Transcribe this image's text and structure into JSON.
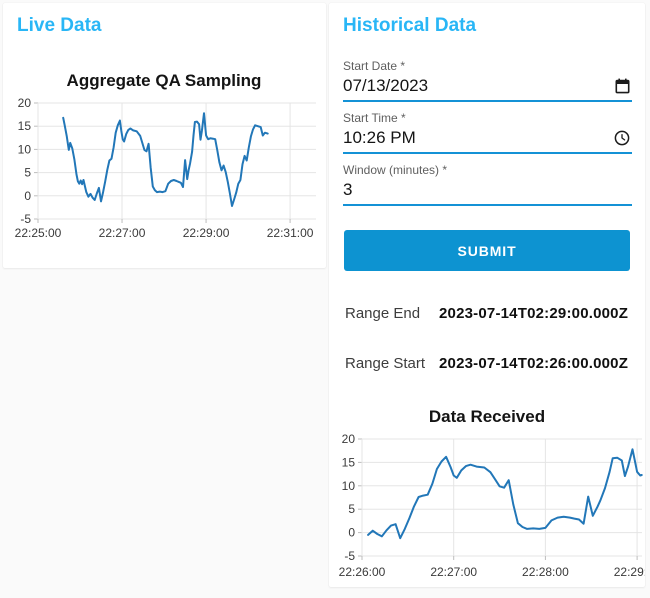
{
  "page": {
    "background": "#fafafa"
  },
  "colors": {
    "heading_cyan": "#29b6f6",
    "accent_blue": "#0d93d1",
    "underline_blue": "#1492d6",
    "line_blue": "#2277b8",
    "grid_gray": "#e5e5e5"
  },
  "live_panel": {
    "heading": "Live Data"
  },
  "historical_panel": {
    "heading": "Historical Data",
    "start_date": {
      "label": "Start Date *",
      "value": "07/13/2023",
      "icon": "calendar-icon"
    },
    "start_time": {
      "label": "Start Time *",
      "value": "10:26 PM",
      "icon": "clock-icon"
    },
    "window": {
      "label": "Window (minutes) *",
      "value": "3"
    },
    "submit_label": "SUBMIT",
    "range_end": {
      "label": "Range End",
      "value": "2023-07-14T02:29:00.000Z"
    },
    "range_start": {
      "label": "Range Start",
      "value": "2023-07-14T02:26:00.000Z"
    }
  },
  "chart_data": [
    {
      "type": "line",
      "title": "Aggregate QA Sampling",
      "xlabel": "",
      "ylabel": "",
      "x_axis_unit": "seconds after 22:25:00",
      "x_min": 0,
      "x_max": 397,
      "y_min": -5,
      "y_max": 20,
      "grid": true,
      "line_color": "#2277b8",
      "grid_color": "#e5e5e5",
      "y_ticks": [
        -5,
        0,
        5,
        10,
        15,
        20
      ],
      "x_ticks": [
        {
          "v": 0,
          "label": "22:25:00"
        },
        {
          "v": 120,
          "label": "22:27:00"
        },
        {
          "v": 240,
          "label": "22:29:00"
        },
        {
          "v": 360,
          "label": "22:31:00"
        }
      ],
      "points": [
        [
          36,
          16.8
        ],
        [
          38,
          15.3
        ],
        [
          41,
          12.9
        ],
        [
          44,
          9.9
        ],
        [
          46,
          11.4
        ],
        [
          49,
          10.2
        ],
        [
          52,
          7.8
        ],
        [
          55,
          4.6
        ],
        [
          57,
          3.1
        ],
        [
          59,
          2.6
        ],
        [
          61,
          3.3
        ],
        [
          63,
          2.5
        ],
        [
          65,
          3.4
        ],
        [
          67,
          2.1
        ],
        [
          69,
          0.8
        ],
        [
          72,
          -0.2
        ],
        [
          75,
          0.4
        ],
        [
          78,
          -0.4
        ],
        [
          81,
          -0.9
        ],
        [
          84,
          0.5
        ],
        [
          87,
          1.7
        ],
        [
          90,
          -1.2
        ],
        [
          93,
          0.8
        ],
        [
          96,
          3.1
        ],
        [
          99,
          5.6
        ],
        [
          102,
          7.6
        ],
        [
          105,
          8.0
        ],
        [
          108,
          10.4
        ],
        [
          111,
          13.6
        ],
        [
          114,
          15.2
        ],
        [
          117,
          16.2
        ],
        [
          119,
          14.0
        ],
        [
          121,
          12.2
        ],
        [
          123,
          11.7
        ],
        [
          126,
          13.3
        ],
        [
          129,
          14.2
        ],
        [
          132,
          14.5
        ],
        [
          136,
          14.1
        ],
        [
          141,
          13.9
        ],
        [
          146,
          12.9
        ],
        [
          149,
          11.4
        ],
        [
          152,
          9.9
        ],
        [
          155,
          9.6
        ],
        [
          158,
          11.2
        ],
        [
          161,
          6.0
        ],
        [
          164,
          2.0
        ],
        [
          167,
          1.2
        ],
        [
          170,
          0.8
        ],
        [
          174,
          0.9
        ],
        [
          178,
          0.8
        ],
        [
          182,
          1.0
        ],
        [
          186,
          2.6
        ],
        [
          190,
          3.2
        ],
        [
          194,
          3.4
        ],
        [
          198,
          3.2
        ],
        [
          201,
          3.0
        ],
        [
          204,
          2.8
        ],
        [
          207,
          1.9
        ],
        [
          210,
          7.7
        ],
        [
          213,
          3.6
        ],
        [
          215,
          5.5
        ],
        [
          217,
          6.9
        ],
        [
          220,
          9.5
        ],
        [
          222,
          13.0
        ],
        [
          224,
          15.9
        ],
        [
          227,
          16.0
        ],
        [
          230,
          15.4
        ],
        [
          232,
          12.1
        ],
        [
          234,
          14.0
        ],
        [
          237,
          17.8
        ],
        [
          240,
          13.0
        ],
        [
          243,
          12.2
        ],
        [
          246,
          12.4
        ],
        [
          250,
          12.3
        ],
        [
          253,
          12.2
        ],
        [
          256,
          9.8
        ],
        [
          259,
          7.2
        ],
        [
          262,
          5.5
        ],
        [
          265,
          6.5
        ],
        [
          268,
          5.1
        ],
        [
          271,
          3.0
        ],
        [
          274,
          0.5
        ],
        [
          277,
          -2.2
        ],
        [
          280,
          -0.8
        ],
        [
          283,
          0.7
        ],
        [
          286,
          2.6
        ],
        [
          289,
          3.4
        ],
        [
          292,
          6.8
        ],
        [
          295,
          8.6
        ],
        [
          298,
          7.6
        ],
        [
          301,
          10.4
        ],
        [
          304,
          12.8
        ],
        [
          307,
          14.3
        ],
        [
          310,
          15.2
        ],
        [
          314,
          15.0
        ],
        [
          318,
          14.8
        ],
        [
          321,
          13.0
        ],
        [
          324,
          13.6
        ],
        [
          328,
          13.4
        ]
      ]
    },
    {
      "type": "line",
      "title": "Data Received",
      "xlabel": "",
      "ylabel": "",
      "x_axis_unit": "seconds after 22:26:00",
      "x_min": 0,
      "x_max": 183.2,
      "y_min": -5,
      "y_max": 20,
      "grid": true,
      "line_color": "#2277b8",
      "grid_color": "#e5e5e5",
      "y_ticks": [
        -5,
        0,
        5,
        10,
        15,
        20
      ],
      "x_ticks": [
        {
          "v": 0,
          "label": "22:26:00"
        },
        {
          "v": 60,
          "label": "22:27:00"
        },
        {
          "v": 120,
          "label": "22:28:00"
        },
        {
          "v": 180,
          "label": "22:29:00"
        }
      ],
      "points": [
        [
          4,
          -0.5
        ],
        [
          7,
          0.4
        ],
        [
          10,
          -0.3
        ],
        [
          13,
          -0.8
        ],
        [
          16,
          0.5
        ],
        [
          19,
          1.5
        ],
        [
          22,
          1.8
        ],
        [
          25,
          -1.2
        ],
        [
          28,
          0.8
        ],
        [
          31,
          3.1
        ],
        [
          34,
          5.6
        ],
        [
          37,
          7.6
        ],
        [
          40,
          7.9
        ],
        [
          43,
          8.1
        ],
        [
          46,
          10.4
        ],
        [
          49,
          13.6
        ],
        [
          52,
          15.2
        ],
        [
          55,
          16.2
        ],
        [
          58,
          14.0
        ],
        [
          60,
          12.2
        ],
        [
          62,
          11.7
        ],
        [
          65,
          13.3
        ],
        [
          68,
          14.2
        ],
        [
          71,
          14.5
        ],
        [
          75,
          14.1
        ],
        [
          80,
          13.9
        ],
        [
          84,
          12.9
        ],
        [
          87,
          11.4
        ],
        [
          90,
          9.9
        ],
        [
          93,
          9.6
        ],
        [
          96,
          11.2
        ],
        [
          99,
          6.0
        ],
        [
          102,
          2.0
        ],
        [
          105,
          1.2
        ],
        [
          108,
          0.8
        ],
        [
          112,
          0.9
        ],
        [
          116,
          0.8
        ],
        [
          120,
          1.0
        ],
        [
          124,
          2.6
        ],
        [
          128,
          3.2
        ],
        [
          132,
          3.4
        ],
        [
          136,
          3.2
        ],
        [
          139,
          3.0
        ],
        [
          142,
          2.8
        ],
        [
          145,
          1.9
        ],
        [
          148,
          7.7
        ],
        [
          151,
          3.6
        ],
        [
          154,
          5.5
        ],
        [
          156,
          6.9
        ],
        [
          159,
          9.5
        ],
        [
          162,
          13.0
        ],
        [
          164,
          15.9
        ],
        [
          167,
          16.0
        ],
        [
          170,
          15.4
        ],
        [
          172,
          12.1
        ],
        [
          174,
          14.0
        ],
        [
          177,
          17.8
        ],
        [
          180,
          13.0
        ],
        [
          182,
          12.2
        ],
        [
          183,
          12.3
        ]
      ]
    }
  ]
}
